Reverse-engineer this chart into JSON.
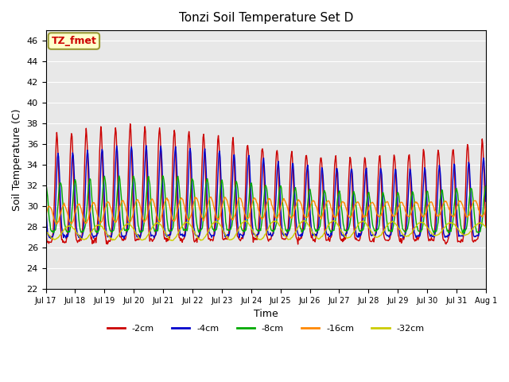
{
  "title": "Tonzi Soil Temperature Set D",
  "xlabel": "Time",
  "ylabel": "Soil Temperature (C)",
  "ylim": [
    22,
    47
  ],
  "yticks": [
    22,
    24,
    26,
    28,
    30,
    32,
    34,
    36,
    38,
    40,
    42,
    44,
    46
  ],
  "xtick_labels": [
    "Jul 17",
    "Jul 18",
    "Jul 19",
    "Jul 20",
    "Jul 21",
    "Jul 22",
    "Jul 23",
    "Jul 24",
    "Jul 25",
    "Jul 26",
    "Jul 27",
    "Jul 28",
    "Jul 29",
    "Jul 30",
    "Jul 31",
    "Aug 1"
  ],
  "legend_labels": [
    "-2cm",
    "-4cm",
    "-8cm",
    "-16cm",
    "-32cm"
  ],
  "legend_colors": [
    "#cc0000",
    "#0000cc",
    "#00aa00",
    "#ff8800",
    "#cccc00"
  ],
  "annotation_text": "TZ_fmet",
  "annotation_bg": "#ffffcc",
  "annotation_border": "#999933",
  "annotation_text_color": "#cc0000",
  "bg_color": "#e8e8e8",
  "grid_color": "white",
  "n_days": 15,
  "samples_per_day": 48
}
